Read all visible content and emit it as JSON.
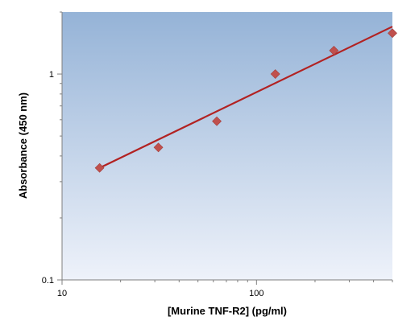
{
  "chart_data": {
    "type": "scatter",
    "xlabel": "[Murine TNF-R2] (pg/ml)",
    "ylabel": "Absorbance (450 nm)",
    "xscale": "log",
    "yscale": "log",
    "xlim": [
      10,
      500
    ],
    "ylim": [
      0.1,
      2
    ],
    "x_ticks": [
      10,
      100
    ],
    "x_tick_labels": [
      "10",
      "100"
    ],
    "y_ticks": [
      0.1,
      1
    ],
    "y_tick_labels": [
      "0.1",
      "1"
    ],
    "grid": false,
    "legend": "none",
    "series": [
      {
        "x": [
          15.6,
          31.3,
          62.5,
          125,
          250,
          500
        ],
        "y": [
          0.35,
          0.44,
          0.59,
          1.0,
          1.3,
          1.58
        ]
      }
    ],
    "fit_line": {
      "x": [
        15.6,
        500
      ],
      "y": [
        0.35,
        1.7
      ]
    },
    "colors": {
      "marker": "#c0504d",
      "fit_line": "#b22222",
      "plot_bg_top": "#95b3d7",
      "plot_bg_bottom": "#eef2fa"
    }
  }
}
